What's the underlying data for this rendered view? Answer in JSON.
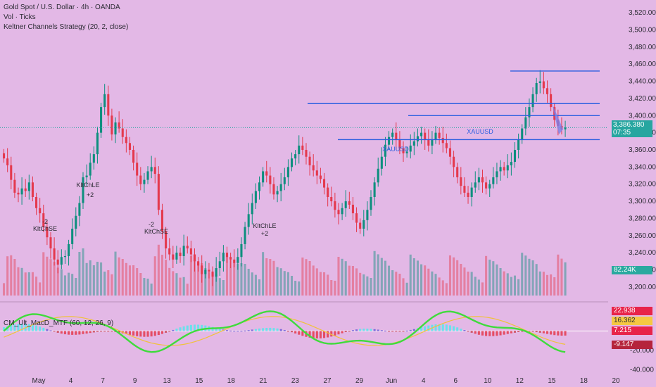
{
  "header": {
    "symbol_line": "Gold Spot / U.S. Dollar · 4h · OANDA",
    "volume_line": "Vol · Ticks",
    "strategy_line": "Keltner Channels Strategy (20, 2, close)"
  },
  "indicator": {
    "label": "CM_Ult_MacD_MTF (60, 12, 26, 9)"
  },
  "price_panel": {
    "current_price": "3,386.380",
    "countdown": "07:35",
    "volume_badge": "82.24K"
  },
  "colors": {
    "background": "#e3b8e6",
    "up_candle": "#0e8f7e",
    "down_candle": "#e4394d",
    "level_line": "#2c5fe0",
    "macd_green": "#3fdb3c",
    "macd_red": "#ee2a45",
    "signal": "#f0c23a"
  },
  "chart_data": [
    {
      "type": "candlestick",
      "ylim": [
        3190,
        3530
      ],
      "y_ticks": [
        "3,520.000",
        "3,500.000",
        "3,480.000",
        "3,460.000",
        "3,440.000",
        "3,420.000",
        "3,400.000",
        "3,380.000",
        "3,360.000",
        "3,340.000",
        "3,320.000",
        "3,300.000",
        "3,280.000",
        "3,260.000",
        "3,240.000",
        "3,220.000",
        "3,200.000"
      ],
      "x_ticks": [
        "May",
        "4",
        "7",
        "9",
        "13",
        "15",
        "18",
        "21",
        "23",
        "27",
        "29",
        "Jun",
        "4",
        "6",
        "10",
        "12",
        "15",
        "18",
        "20"
      ],
      "closes": [
        3350,
        3342,
        3325,
        3310,
        3308,
        3315,
        3312,
        3322,
        3305,
        3292,
        3286,
        3270,
        3258,
        3245,
        3232,
        3226,
        3235,
        3236,
        3250,
        3268,
        3283,
        3298,
        3328,
        3330,
        3345,
        3355,
        3380,
        3410,
        3425,
        3400,
        3378,
        3392,
        3385,
        3375,
        3368,
        3360,
        3345,
        3330,
        3320,
        3325,
        3335,
        3340,
        3332,
        3290,
        3265,
        3245,
        3238,
        3232,
        3240,
        3236,
        3248,
        3245,
        3238,
        3230,
        3225,
        3215,
        3220,
        3218,
        3212,
        3222,
        3230,
        3240,
        3235,
        3232,
        3228,
        3235,
        3250,
        3270,
        3285,
        3298,
        3312,
        3322,
        3335,
        3330,
        3320,
        3308,
        3312,
        3320,
        3328,
        3340,
        3350,
        3355,
        3365,
        3360,
        3352,
        3342,
        3336,
        3330,
        3326,
        3316,
        3305,
        3300,
        3290,
        3285,
        3292,
        3300,
        3296,
        3286,
        3275,
        3268,
        3278,
        3290,
        3305,
        3322,
        3338,
        3352,
        3366,
        3375,
        3380,
        3372,
        3362,
        3356,
        3358,
        3365,
        3370,
        3376,
        3380,
        3372,
        3365,
        3372,
        3380,
        3374,
        3368,
        3362,
        3352,
        3340,
        3328,
        3318,
        3310,
        3305,
        3316,
        3322,
        3328,
        3322,
        3315,
        3320,
        3328,
        3335,
        3340,
        3336,
        3342,
        3346,
        3360,
        3372,
        3385,
        3398,
        3410,
        3425,
        3438,
        3440,
        3432,
        3425,
        3410,
        3395,
        3388,
        3384,
        3386
      ],
      "annotations": [
        "KltChLE",
        "+2",
        "-2",
        "KltChSE",
        "-2",
        "KltChSE",
        "KltChLE",
        "+2",
        "XAUUSD",
        "XAUUSD"
      ],
      "levels": [
        3452,
        3414,
        3400,
        3372
      ]
    },
    {
      "type": "histogram+line",
      "name": "CM_Ult_MacD_MTF",
      "ylim": [
        -42,
        28
      ],
      "y_ticks": [
        "20.000",
        "0.000",
        "-20.000",
        "-40.000"
      ],
      "value_labels": [
        "22.938",
        "16.362",
        "7.215",
        "-9.147"
      ]
    }
  ]
}
